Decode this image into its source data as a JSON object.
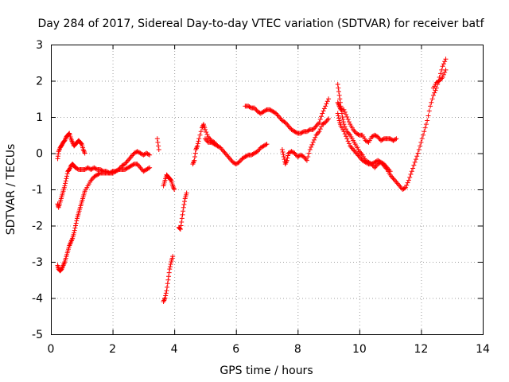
{
  "chart_data": {
    "type": "scatter",
    "title": "Day 284 of 2017, Sidereal Day-to-day VTEC variation (SDTVAR) for receiver batf",
    "xlabel": "GPS time / hours",
    "ylabel": "SDTVAR / TECUs",
    "xlim": [
      0,
      14
    ],
    "ylim": [
      -5,
      3
    ],
    "xticks": [
      "0",
      "2",
      "4",
      "6",
      "8",
      "10",
      "12",
      "14"
    ],
    "yticks": [
      "-5",
      "-4",
      "-3",
      "-2",
      "-1",
      "0",
      "1",
      "2",
      "3"
    ],
    "grid": true,
    "marker": "+",
    "series": [
      {
        "name": "SDTVAR",
        "color": "#ff0000",
        "tracks": [
          [
            [
              0.22,
              -0.15
            ],
            [
              0.25,
              0.05
            ],
            [
              0.3,
              0.15
            ],
            [
              0.35,
              0.22
            ],
            [
              0.4,
              0.3
            ],
            [
              0.45,
              0.35
            ],
            [
              0.5,
              0.45
            ],
            [
              0.55,
              0.5
            ],
            [
              0.6,
              0.55
            ],
            [
              0.65,
              0.4
            ],
            [
              0.7,
              0.3
            ],
            [
              0.75,
              0.2
            ],
            [
              0.8,
              0.25
            ],
            [
              0.85,
              0.3
            ],
            [
              0.9,
              0.35
            ],
            [
              0.95,
              0.3
            ],
            [
              1.0,
              0.25
            ],
            [
              1.05,
              0.1
            ],
            [
              1.1,
              0.0
            ]
          ],
          [
            [
              0.22,
              -1.4
            ],
            [
              0.25,
              -1.5
            ],
            [
              0.3,
              -1.35
            ],
            [
              0.35,
              -1.2
            ],
            [
              0.4,
              -1.05
            ],
            [
              0.45,
              -0.9
            ],
            [
              0.5,
              -0.7
            ],
            [
              0.55,
              -0.5
            ],
            [
              0.6,
              -0.45
            ],
            [
              0.65,
              -0.35
            ],
            [
              0.7,
              -0.3
            ],
            [
              0.75,
              -0.35
            ],
            [
              0.8,
              -0.4
            ],
            [
              0.9,
              -0.45
            ],
            [
              1.0,
              -0.45
            ],
            [
              1.1,
              -0.45
            ],
            [
              1.2,
              -0.4
            ],
            [
              1.3,
              -0.45
            ],
            [
              1.4,
              -0.4
            ],
            [
              1.5,
              -0.45
            ],
            [
              1.6,
              -0.45
            ],
            [
              1.7,
              -0.5
            ],
            [
              1.8,
              -0.5
            ],
            [
              1.9,
              -0.55
            ],
            [
              2.0,
              -0.5
            ],
            [
              2.1,
              -0.5
            ],
            [
              2.2,
              -0.45
            ],
            [
              2.3,
              -0.35
            ],
            [
              2.4,
              -0.3
            ],
            [
              2.5,
              -0.2
            ],
            [
              2.6,
              -0.1
            ],
            [
              2.7,
              0.0
            ],
            [
              2.8,
              0.05
            ],
            [
              2.9,
              0.0
            ],
            [
              3.0,
              -0.05
            ],
            [
              3.1,
              0.0
            ],
            [
              3.2,
              -0.05
            ]
          ],
          [
            [
              0.22,
              -3.1
            ],
            [
              0.25,
              -3.2
            ],
            [
              0.3,
              -3.25
            ],
            [
              0.35,
              -3.2
            ],
            [
              0.4,
              -3.1
            ],
            [
              0.45,
              -3.0
            ],
            [
              0.5,
              -2.85
            ],
            [
              0.55,
              -2.7
            ],
            [
              0.6,
              -2.55
            ],
            [
              0.65,
              -2.45
            ],
            [
              0.7,
              -2.35
            ],
            [
              0.75,
              -2.2
            ],
            [
              0.8,
              -2.0
            ],
            [
              0.85,
              -1.8
            ],
            [
              0.9,
              -1.65
            ],
            [
              0.95,
              -1.5
            ],
            [
              1.0,
              -1.35
            ],
            [
              1.05,
              -1.2
            ],
            [
              1.1,
              -1.05
            ],
            [
              1.2,
              -0.9
            ],
            [
              1.3,
              -0.75
            ],
            [
              1.4,
              -0.65
            ],
            [
              1.5,
              -0.6
            ],
            [
              1.6,
              -0.55
            ],
            [
              1.7,
              -0.55
            ],
            [
              1.8,
              -0.55
            ],
            [
              1.9,
              -0.55
            ],
            [
              2.0,
              -0.55
            ],
            [
              2.1,
              -0.5
            ],
            [
              2.2,
              -0.45
            ],
            [
              2.3,
              -0.45
            ],
            [
              2.4,
              -0.45
            ],
            [
              2.5,
              -0.4
            ],
            [
              2.6,
              -0.35
            ],
            [
              2.7,
              -0.3
            ],
            [
              2.8,
              -0.3
            ],
            [
              2.9,
              -0.4
            ],
            [
              3.0,
              -0.5
            ],
            [
              3.1,
              -0.45
            ],
            [
              3.2,
              -0.4
            ]
          ],
          [
            [
              3.45,
              0.4
            ],
            [
              3.5,
              0.1
            ]
          ],
          [
            [
              3.65,
              -4.1
            ],
            [
              3.7,
              -4.0
            ],
            [
              3.75,
              -3.8
            ],
            [
              3.8,
              -3.5
            ],
            [
              3.85,
              -3.2
            ],
            [
              3.9,
              -3.0
            ],
            [
              3.95,
              -2.85
            ]
          ],
          [
            [
              3.65,
              -0.9
            ],
            [
              3.7,
              -0.75
            ],
            [
              3.75,
              -0.6
            ],
            [
              3.8,
              -0.65
            ],
            [
              3.85,
              -0.7
            ],
            [
              3.9,
              -0.75
            ],
            [
              3.95,
              -0.9
            ],
            [
              4.0,
              -1.0
            ]
          ],
          [
            [
              4.15,
              -2.05
            ],
            [
              4.2,
              -2.1
            ],
            [
              4.25,
              -1.8
            ],
            [
              4.3,
              -1.5
            ],
            [
              4.35,
              -1.25
            ],
            [
              4.4,
              -1.1
            ]
          ],
          [
            [
              4.6,
              -0.3
            ],
            [
              4.65,
              -0.2
            ],
            [
              4.7,
              0.1
            ],
            [
              4.75,
              0.2
            ],
            [
              4.8,
              0.4
            ],
            [
              4.9,
              0.7
            ],
            [
              4.95,
              0.8
            ],
            [
              5.0,
              0.65
            ],
            [
              5.1,
              0.45
            ],
            [
              5.2,
              0.35
            ],
            [
              5.3,
              0.3
            ],
            [
              5.4,
              0.2
            ]
          ],
          [
            [
              5.0,
              0.4
            ],
            [
              5.1,
              0.3
            ],
            [
              5.2,
              0.3
            ],
            [
              5.3,
              0.25
            ],
            [
              5.4,
              0.2
            ],
            [
              5.5,
              0.15
            ],
            [
              5.6,
              0.05
            ],
            [
              5.7,
              -0.05
            ],
            [
              5.8,
              -0.15
            ],
            [
              5.9,
              -0.25
            ],
            [
              6.0,
              -0.3
            ],
            [
              6.1,
              -0.25
            ],
            [
              6.2,
              -0.15
            ],
            [
              6.3,
              -0.1
            ],
            [
              6.4,
              -0.05
            ],
            [
              6.5,
              -0.05
            ],
            [
              6.6,
              0.0
            ],
            [
              6.7,
              0.05
            ],
            [
              6.8,
              0.15
            ],
            [
              6.9,
              0.2
            ],
            [
              7.0,
              0.25
            ]
          ],
          [
            [
              6.3,
              1.3
            ],
            [
              6.4,
              1.3
            ],
            [
              6.5,
              1.25
            ],
            [
              6.6,
              1.25
            ],
            [
              6.7,
              1.15
            ],
            [
              6.8,
              1.1
            ],
            [
              6.9,
              1.15
            ],
            [
              7.0,
              1.2
            ],
            [
              7.1,
              1.2
            ],
            [
              7.2,
              1.15
            ],
            [
              7.3,
              1.1
            ],
            [
              7.4,
              1.0
            ],
            [
              7.5,
              0.9
            ],
            [
              7.6,
              0.85
            ],
            [
              7.7,
              0.75
            ],
            [
              7.8,
              0.65
            ],
            [
              7.9,
              0.6
            ],
            [
              8.0,
              0.55
            ],
            [
              8.1,
              0.55
            ],
            [
              8.2,
              0.6
            ],
            [
              8.3,
              0.6
            ],
            [
              8.4,
              0.65
            ],
            [
              8.5,
              0.65
            ],
            [
              8.6,
              0.75
            ],
            [
              8.7,
              0.85
            ],
            [
              8.8,
              1.1
            ],
            [
              8.9,
              1.3
            ],
            [
              9.0,
              1.5
            ]
          ],
          [
            [
              7.5,
              0.1
            ],
            [
              7.55,
              -0.1
            ],
            [
              7.6,
              -0.3
            ],
            [
              7.65,
              -0.2
            ],
            [
              7.7,
              0.0
            ],
            [
              7.8,
              0.05
            ],
            [
              7.9,
              0.0
            ],
            [
              8.0,
              -0.1
            ],
            [
              8.1,
              -0.05
            ],
            [
              8.2,
              -0.1
            ],
            [
              8.3,
              -0.2
            ],
            [
              8.4,
              0.1
            ],
            [
              8.5,
              0.3
            ],
            [
              8.6,
              0.5
            ],
            [
              8.7,
              0.6
            ],
            [
              8.8,
              0.8
            ],
            [
              8.9,
              0.85
            ],
            [
              9.0,
              0.95
            ]
          ],
          [
            [
              9.3,
              1.9
            ],
            [
              9.35,
              1.6
            ],
            [
              9.4,
              1.3
            ],
            [
              9.45,
              1.0
            ],
            [
              9.5,
              0.8
            ],
            [
              9.6,
              0.6
            ],
            [
              9.7,
              0.5
            ],
            [
              9.8,
              0.35
            ],
            [
              9.9,
              0.2
            ],
            [
              10.0,
              0.05
            ],
            [
              10.1,
              -0.05
            ],
            [
              10.2,
              -0.2
            ],
            [
              10.3,
              -0.25
            ],
            [
              10.4,
              -0.3
            ],
            [
              10.5,
              -0.4
            ],
            [
              10.6,
              -0.3
            ],
            [
              10.7,
              -0.25
            ],
            [
              10.8,
              -0.35
            ],
            [
              10.9,
              -0.45
            ],
            [
              11.0,
              -0.6
            ],
            [
              11.1,
              -0.7
            ],
            [
              11.2,
              -0.8
            ],
            [
              11.3,
              -0.9
            ],
            [
              11.4,
              -1.0
            ],
            [
              11.5,
              -0.95
            ],
            [
              11.6,
              -0.75
            ],
            [
              11.7,
              -0.5
            ],
            [
              11.8,
              -0.25
            ],
            [
              11.9,
              0.0
            ],
            [
              12.0,
              0.3
            ],
            [
              12.1,
              0.6
            ],
            [
              12.2,
              0.9
            ],
            [
              12.3,
              1.3
            ],
            [
              12.4,
              1.6
            ],
            [
              12.5,
              1.8
            ],
            [
              12.6,
              2.1
            ],
            [
              12.7,
              2.4
            ],
            [
              12.8,
              2.6
            ]
          ],
          [
            [
              9.3,
              1.4
            ],
            [
              9.35,
              1.3
            ],
            [
              9.4,
              1.2
            ],
            [
              9.5,
              1.2
            ],
            [
              9.6,
              1.0
            ],
            [
              9.7,
              0.8
            ],
            [
              9.8,
              0.65
            ],
            [
              9.9,
              0.55
            ],
            [
              10.0,
              0.5
            ],
            [
              10.1,
              0.5
            ],
            [
              10.2,
              0.35
            ],
            [
              10.3,
              0.3
            ],
            [
              10.4,
              0.45
            ],
            [
              10.5,
              0.5
            ],
            [
              10.6,
              0.45
            ],
            [
              10.7,
              0.35
            ],
            [
              10.8,
              0.4
            ],
            [
              10.9,
              0.4
            ],
            [
              11.0,
              0.4
            ],
            [
              11.1,
              0.35
            ],
            [
              11.2,
              0.4
            ]
          ],
          [
            [
              9.3,
              1.1
            ],
            [
              9.35,
              0.9
            ],
            [
              9.4,
              0.75
            ],
            [
              9.5,
              0.6
            ],
            [
              9.6,
              0.4
            ],
            [
              9.7,
              0.2
            ],
            [
              9.8,
              0.1
            ],
            [
              9.9,
              0.0
            ],
            [
              10.0,
              -0.1
            ],
            [
              10.1,
              -0.2
            ],
            [
              10.2,
              -0.25
            ],
            [
              10.3,
              -0.3
            ],
            [
              10.4,
              -0.3
            ],
            [
              10.5,
              -0.25
            ],
            [
              10.6,
              -0.2
            ],
            [
              10.7,
              -0.25
            ],
            [
              10.8,
              -0.3
            ],
            [
              10.9,
              -0.4
            ],
            [
              11.0,
              -0.5
            ]
          ],
          [
            [
              12.4,
              1.8
            ],
            [
              12.5,
              1.95
            ],
            [
              12.6,
              2.0
            ],
            [
              12.7,
              2.1
            ],
            [
              12.8,
              2.3
            ]
          ]
        ]
      }
    ]
  }
}
